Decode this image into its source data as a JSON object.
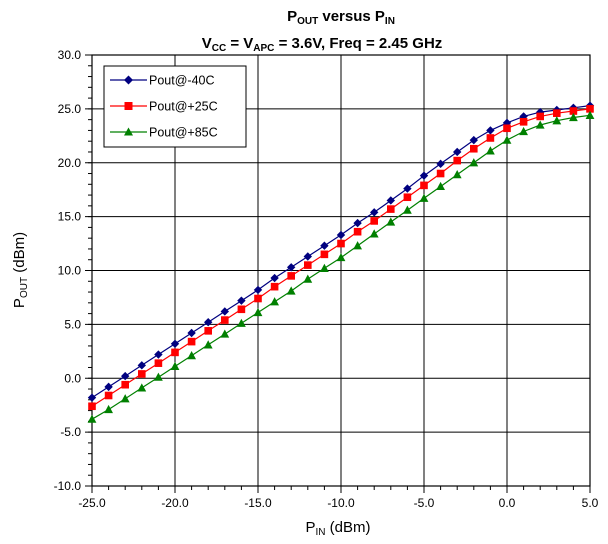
{
  "chart_data": {
    "type": "line",
    "title_line1": {
      "main": "P",
      "sub": "OUT",
      "rest": " versus P",
      "sub2": "IN"
    },
    "title_line2": {
      "v1": "V",
      "sub1": "CC",
      "mid": " = V",
      "sub2": "APC",
      "rest": " = 3.6V, Freq = 2.45 GHz"
    },
    "xlabel": {
      "main": "P",
      "sub": "IN",
      "rest": " (dBm)"
    },
    "ylabel": {
      "main": "P",
      "sub": "OUT",
      "rest": " (dBm)"
    },
    "xlim": [
      -25,
      5
    ],
    "ylim": [
      -10,
      30
    ],
    "x_ticks": [
      "-25.0",
      "-20.0",
      "-15.0",
      "-10.0",
      "-5.0",
      "0.0",
      "5.0"
    ],
    "y_ticks": [
      "-10.0",
      "-5.0",
      "0.0",
      "5.0",
      "10.0",
      "15.0",
      "20.0",
      "25.0",
      "30.0"
    ],
    "grid": true,
    "legend_position": "top-left",
    "x": [
      -25,
      -24,
      -23,
      -22,
      -21,
      -20,
      -19,
      -18,
      -17,
      -16,
      -15,
      -14,
      -13,
      -12,
      -11,
      -10,
      -9,
      -8,
      -7,
      -6,
      -5,
      -4,
      -3,
      -2,
      -1,
      0,
      1,
      2,
      3,
      4,
      5
    ],
    "series": [
      {
        "name": "Pout@-40C",
        "color": "#000080",
        "marker": "diamond",
        "values": [
          -1.8,
          -0.8,
          0.2,
          1.2,
          2.2,
          3.2,
          4.2,
          5.2,
          6.2,
          7.2,
          8.2,
          9.3,
          10.3,
          11.3,
          12.3,
          13.3,
          14.4,
          15.4,
          16.5,
          17.6,
          18.8,
          19.9,
          21.0,
          22.1,
          23.0,
          23.7,
          24.3,
          24.7,
          24.9,
          25.1,
          25.3
        ]
      },
      {
        "name": "Pout@+25C",
        "color": "#ff0000",
        "marker": "square",
        "values": [
          -2.6,
          -1.6,
          -0.6,
          0.4,
          1.4,
          2.4,
          3.4,
          4.4,
          5.4,
          6.4,
          7.4,
          8.5,
          9.5,
          10.5,
          11.5,
          12.5,
          13.6,
          14.6,
          15.7,
          16.8,
          17.9,
          19.0,
          20.2,
          21.3,
          22.3,
          23.2,
          23.8,
          24.3,
          24.6,
          24.8,
          25.0
        ]
      },
      {
        "name": "Pout@+85C",
        "color": "#008000",
        "marker": "triangle",
        "values": [
          -3.8,
          -2.9,
          -1.9,
          -0.9,
          0.1,
          1.1,
          2.1,
          3.1,
          4.1,
          5.1,
          6.1,
          7.1,
          8.1,
          9.2,
          10.2,
          11.2,
          12.3,
          13.4,
          14.5,
          15.6,
          16.7,
          17.8,
          18.9,
          20.0,
          21.1,
          22.1,
          22.9,
          23.5,
          23.9,
          24.2,
          24.4
        ]
      }
    ]
  }
}
